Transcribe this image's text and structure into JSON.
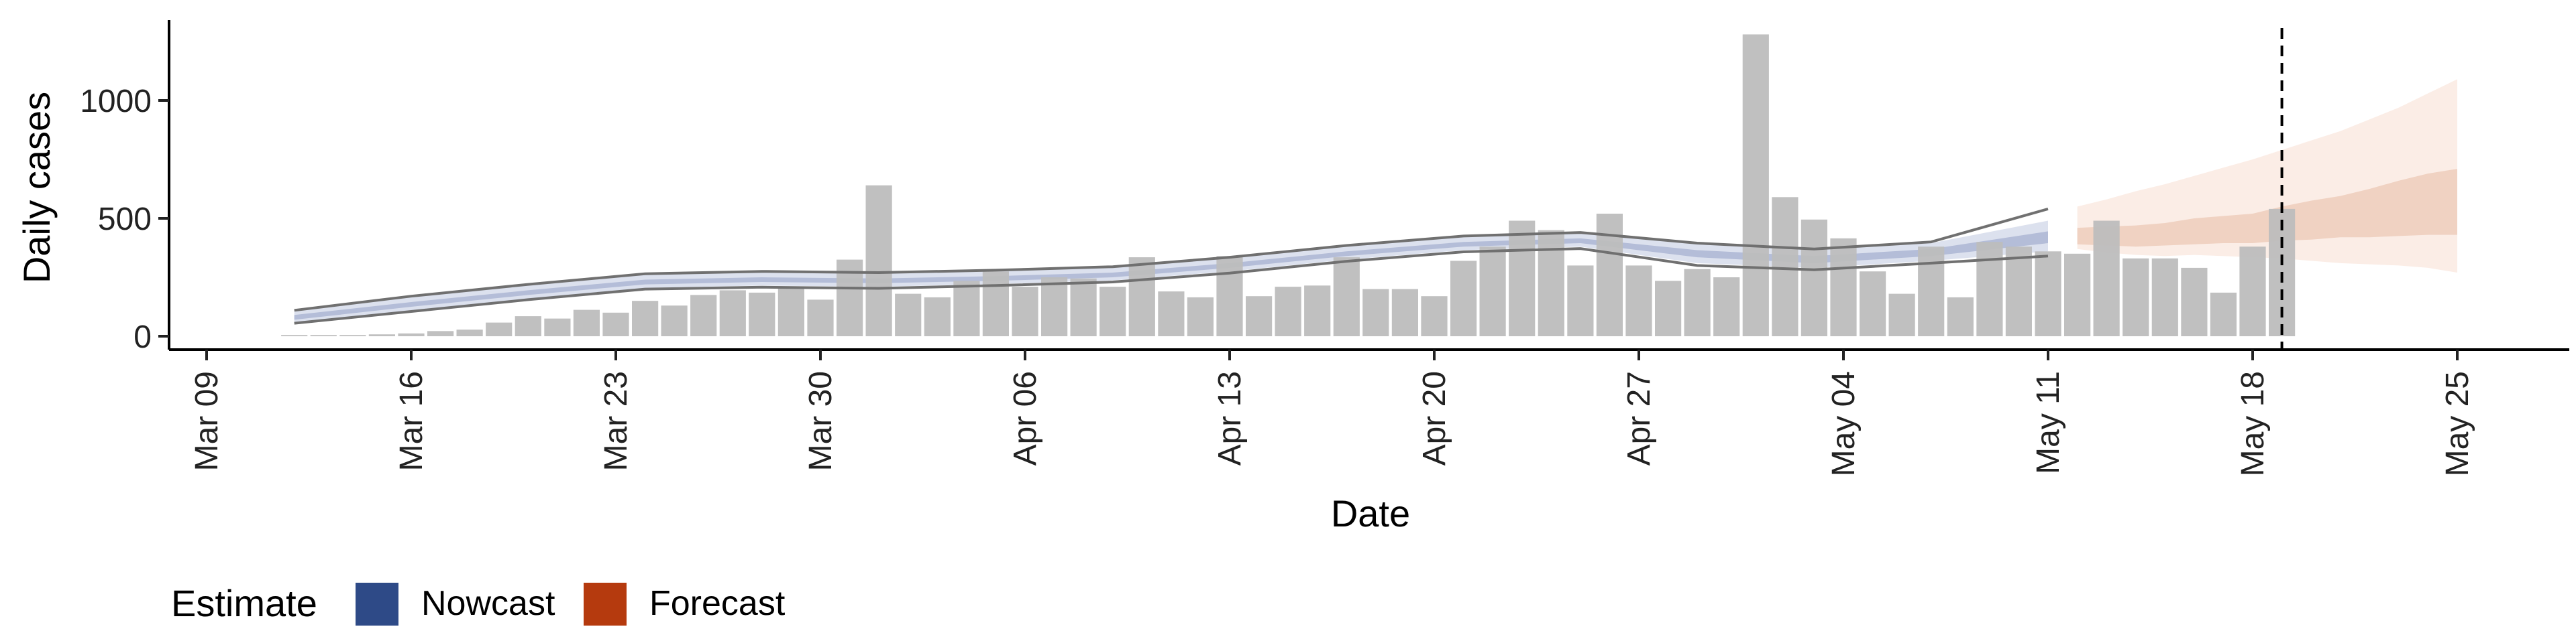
{
  "chart_data": {
    "type": "bar",
    "xlabel": "Date",
    "ylabel": "Daily cases",
    "x_tick_labels": [
      "Mar 09",
      "Mar 16",
      "Mar 23",
      "Mar 30",
      "Apr 06",
      "Apr 13",
      "Apr 20",
      "Apr 27",
      "May 04",
      "May 11",
      "May 18",
      "May 25"
    ],
    "x_tick_dates": [
      "2020-03-09",
      "2020-03-16",
      "2020-03-23",
      "2020-03-30",
      "2020-04-06",
      "2020-04-13",
      "2020-04-20",
      "2020-04-27",
      "2020-05-04",
      "2020-05-11",
      "2020-05-18",
      "2020-05-25"
    ],
    "y_tick_labels": [
      "0",
      "500",
      "1000"
    ],
    "y_ticks": [
      0,
      500,
      1000
    ],
    "xlim": [
      "2020-03-09",
      "2020-05-25"
    ],
    "ylim": [
      0,
      1300
    ],
    "grid": false,
    "legend": {
      "title": "Estimate",
      "position": "bottom-left",
      "entries": [
        {
          "label": "Nowcast",
          "color": "#2E4A87"
        },
        {
          "label": "Forecast",
          "color": "#B53A0E"
        }
      ]
    },
    "reported_cases": {
      "dates": [
        "2020-03-12",
        "2020-03-13",
        "2020-03-14",
        "2020-03-15",
        "2020-03-16",
        "2020-03-17",
        "2020-03-18",
        "2020-03-19",
        "2020-03-20",
        "2020-03-21",
        "2020-03-22",
        "2020-03-23",
        "2020-03-24",
        "2020-03-25",
        "2020-03-26",
        "2020-03-27",
        "2020-03-28",
        "2020-03-29",
        "2020-03-30",
        "2020-03-31",
        "2020-04-01",
        "2020-04-02",
        "2020-04-03",
        "2020-04-04",
        "2020-04-05",
        "2020-04-06",
        "2020-04-07",
        "2020-04-08",
        "2020-04-09",
        "2020-04-10",
        "2020-04-11",
        "2020-04-12",
        "2020-04-13",
        "2020-04-14",
        "2020-04-15",
        "2020-04-16",
        "2020-04-17",
        "2020-04-18",
        "2020-04-19",
        "2020-04-20",
        "2020-04-21",
        "2020-04-22",
        "2020-04-23",
        "2020-04-24",
        "2020-04-25",
        "2020-04-26",
        "2020-04-27",
        "2020-04-28",
        "2020-04-29",
        "2020-04-30",
        "2020-05-01",
        "2020-05-02",
        "2020-05-03",
        "2020-05-04",
        "2020-05-05",
        "2020-05-06",
        "2020-05-07",
        "2020-05-08",
        "2020-05-09",
        "2020-05-10",
        "2020-05-11",
        "2020-05-12",
        "2020-05-13",
        "2020-05-14",
        "2020-05-15",
        "2020-05-16",
        "2020-05-17",
        "2020-05-18",
        "2020-05-19"
      ],
      "values": [
        5,
        5,
        5,
        8,
        12,
        22,
        28,
        58,
        85,
        75,
        112,
        100,
        150,
        130,
        175,
        195,
        185,
        210,
        155,
        325,
        640,
        180,
        165,
        235,
        275,
        210,
        250,
        245,
        210,
        335,
        190,
        165,
        340,
        170,
        210,
        215,
        335,
        200,
        200,
        170,
        320,
        380,
        490,
        450,
        300,
        520,
        300,
        235,
        285,
        250,
        1280,
        590,
        495,
        415,
        275,
        180,
        380,
        165,
        400,
        380,
        360,
        350,
        490,
        330,
        330,
        290,
        185,
        380,
        540
      ]
    },
    "nowcast": {
      "dates": [
        "2020-03-12",
        "2020-03-16",
        "2020-03-20",
        "2020-03-24",
        "2020-03-28",
        "2020-04-01",
        "2020-04-05",
        "2020-04-09",
        "2020-04-13",
        "2020-04-17",
        "2020-04-21",
        "2020-04-25",
        "2020-04-29",
        "2020-05-03",
        "2020-05-07",
        "2020-05-11"
      ],
      "median": [
        80,
        135,
        185,
        230,
        240,
        235,
        245,
        260,
        300,
        350,
        390,
        405,
        350,
        325,
        355,
        420
      ],
      "lower_50": [
        70,
        125,
        175,
        220,
        230,
        225,
        235,
        250,
        290,
        340,
        380,
        395,
        335,
        310,
        340,
        395
      ],
      "upper_50": [
        90,
        145,
        195,
        240,
        250,
        245,
        255,
        270,
        310,
        360,
        400,
        415,
        365,
        340,
        370,
        445
      ],
      "lower_90": [
        60,
        110,
        160,
        205,
        215,
        210,
        222,
        237,
        275,
        325,
        365,
        380,
        310,
        290,
        320,
        360
      ],
      "upper_90": [
        105,
        165,
        215,
        260,
        270,
        265,
        275,
        290,
        330,
        380,
        420,
        435,
        390,
        365,
        395,
        490
      ],
      "lower_outer": [
        55,
        105,
        155,
        200,
        208,
        203,
        215,
        230,
        268,
        318,
        358,
        372,
        300,
        282,
        310,
        340
      ],
      "upper_outer": [
        110,
        170,
        220,
        265,
        275,
        270,
        280,
        295,
        335,
        385,
        425,
        440,
        395,
        370,
        400,
        540
      ]
    },
    "forecast": {
      "dates": [
        "2020-05-12",
        "2020-05-13",
        "2020-05-14",
        "2020-05-15",
        "2020-05-16",
        "2020-05-17",
        "2020-05-18",
        "2020-05-19",
        "2020-05-20",
        "2020-05-21",
        "2020-05-22",
        "2020-05-23",
        "2020-05-24",
        "2020-05-25"
      ],
      "lower_50": [
        390,
        385,
        380,
        385,
        390,
        395,
        395,
        405,
        410,
        420,
        420,
        425,
        430,
        430
      ],
      "upper_50": [
        460,
        465,
        470,
        480,
        500,
        510,
        520,
        550,
        575,
        595,
        625,
        660,
        690,
        710
      ],
      "lower_90": [
        370,
        355,
        345,
        340,
        345,
        340,
        335,
        330,
        320,
        310,
        305,
        300,
        290,
        270
      ],
      "upper_90": [
        550,
        580,
        615,
        645,
        680,
        715,
        750,
        790,
        830,
        870,
        920,
        970,
        1030,
        1090
      ]
    },
    "vline_date": "2020-05-19"
  },
  "colors": {
    "bar": "#BDBDBD",
    "nowcast_light": "#DCE1EE",
    "nowcast_dark": "#B4BDD8",
    "outline": "#707070",
    "forecast_light": "#FBEDE6",
    "forecast_dark": "#F0D2C2"
  }
}
